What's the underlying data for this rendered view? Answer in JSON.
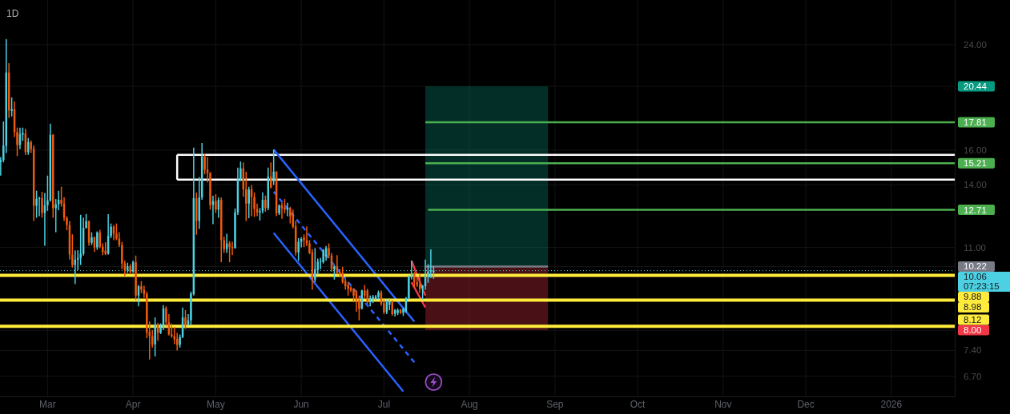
{
  "chart_data": {
    "type": "candlestick",
    "title": "1D",
    "x": [
      "2025-02-12",
      "2025-02-13",
      "2025-02-14",
      "2025-02-15",
      "2025-02-16",
      "2025-02-17",
      "2025-02-18",
      "2025-02-19",
      "2025-02-20",
      "2025-02-21",
      "2025-02-22",
      "2025-02-23",
      "2025-02-24",
      "2025-02-25",
      "2025-02-26",
      "2025-02-27",
      "2025-02-28",
      "2025-03-01",
      "2025-03-02",
      "2025-03-03",
      "2025-03-04",
      "2025-03-05",
      "2025-03-06",
      "2025-03-07",
      "2025-03-08",
      "2025-03-09",
      "2025-03-10",
      "2025-03-11",
      "2025-03-12",
      "2025-03-13",
      "2025-03-14",
      "2025-03-15",
      "2025-03-16",
      "2025-03-17",
      "2025-03-18",
      "2025-03-19",
      "2025-03-20",
      "2025-03-21",
      "2025-03-22",
      "2025-03-23",
      "2025-03-24",
      "2025-03-25",
      "2025-03-26",
      "2025-03-27",
      "2025-03-28",
      "2025-03-29",
      "2025-03-30",
      "2025-03-31",
      "2025-04-01",
      "2025-04-02",
      "2025-04-03",
      "2025-04-04",
      "2025-04-05",
      "2025-04-06",
      "2025-04-07",
      "2025-04-08",
      "2025-04-09",
      "2025-04-10",
      "2025-04-11",
      "2025-04-12",
      "2025-04-13",
      "2025-04-14",
      "2025-04-15",
      "2025-04-16",
      "2025-04-17",
      "2025-04-18",
      "2025-04-19",
      "2025-04-20",
      "2025-04-21",
      "2025-04-22",
      "2025-04-23",
      "2025-04-24",
      "2025-04-25",
      "2025-04-26",
      "2025-04-27",
      "2025-04-28",
      "2025-04-29",
      "2025-04-30",
      "2025-05-01",
      "2025-05-02",
      "2025-05-03",
      "2025-05-04",
      "2025-05-05",
      "2025-05-06",
      "2025-05-07",
      "2025-05-08",
      "2025-05-09",
      "2025-05-10",
      "2025-05-11",
      "2025-05-12",
      "2025-05-13",
      "2025-05-14",
      "2025-05-15",
      "2025-05-16",
      "2025-05-17",
      "2025-05-18",
      "2025-05-19",
      "2025-05-20",
      "2025-05-21",
      "2025-05-22",
      "2025-05-23",
      "2025-05-24",
      "2025-05-25",
      "2025-05-26",
      "2025-05-27",
      "2025-05-28",
      "2025-05-29",
      "2025-05-30",
      "2025-05-31",
      "2025-06-01",
      "2025-06-02",
      "2025-06-03",
      "2025-06-04",
      "2025-06-05",
      "2025-06-06",
      "2025-06-07",
      "2025-06-08",
      "2025-06-09",
      "2025-06-10",
      "2025-06-11",
      "2025-06-12",
      "2025-06-13",
      "2025-06-14",
      "2025-06-15",
      "2025-06-16",
      "2025-06-17",
      "2025-06-18",
      "2025-06-19",
      "2025-06-20",
      "2025-06-21",
      "2025-06-22",
      "2025-06-23",
      "2025-06-24",
      "2025-06-25",
      "2025-06-26",
      "2025-06-27",
      "2025-06-28",
      "2025-06-29",
      "2025-06-30",
      "2025-07-01",
      "2025-07-02",
      "2025-07-03",
      "2025-07-04",
      "2025-07-05",
      "2025-07-06",
      "2025-07-07",
      "2025-07-08",
      "2025-07-09",
      "2025-07-10",
      "2025-07-11",
      "2025-07-12",
      "2025-07-13",
      "2025-07-14",
      "2025-07-15",
      "2025-07-16",
      "2025-07-17",
      "2025-07-18",
      "2025-07-19"
    ],
    "ohlc": [
      [
        15.28,
        15.58,
        14.5,
        15.41
      ],
      [
        15.39,
        17.86,
        15.26,
        16.28
      ],
      [
        16.26,
        24.52,
        15.82,
        21.56
      ],
      [
        21.56,
        22.36,
        18.11,
        18.64
      ],
      [
        18.6,
        19.59,
        18.21,
        18.72
      ],
      [
        18.72,
        19.28,
        16.82,
        17.14
      ],
      [
        17.14,
        17.44,
        15.63,
        16.31
      ],
      [
        16.31,
        17.44,
        16.06,
        17.02
      ],
      [
        16.98,
        17.44,
        16.57,
        17.08
      ],
      [
        17.06,
        17.37,
        15.69,
        15.87
      ],
      [
        15.87,
        16.76,
        15.71,
        16.5
      ],
      [
        16.5,
        16.6,
        15.82,
        16.06
      ],
      [
        16.1,
        16.28,
        12.18,
        12.91
      ],
      [
        12.91,
        13.68,
        12.33,
        13.26
      ],
      [
        13.26,
        13.36,
        12.4,
        13.3
      ],
      [
        13.3,
        13.63,
        12.33,
        12.56
      ],
      [
        12.56,
        13.56,
        11.07,
        12.94
      ],
      [
        12.94,
        14.5,
        12.66,
        13.18
      ],
      [
        13.18,
        17.71,
        13.12,
        16.96
      ],
      [
        16.96,
        17.02,
        12.33,
        12.79
      ],
      [
        12.79,
        13.25,
        11.66,
        12.98
      ],
      [
        12.98,
        13.68,
        12.69,
        13.21
      ],
      [
        13.21,
        13.89,
        12.87,
        13.02
      ],
      [
        13.02,
        13.34,
        12.18,
        12.33
      ],
      [
        12.33,
        12.4,
        11.75,
        11.99
      ],
      [
        11.99,
        12.18,
        10.5,
        10.7
      ],
      [
        10.7,
        11.57,
        10.18,
        10.28
      ],
      [
        10.28,
        10.88,
        9.55,
        10.5
      ],
      [
        10.5,
        10.88,
        10.08,
        10.56
      ],
      [
        10.56,
        12.47,
        10.28,
        10.73
      ],
      [
        10.73,
        12.34,
        10.66,
        11.86
      ],
      [
        11.86,
        12.51,
        11.83,
        12.17
      ],
      [
        12.17,
        12.2,
        11.07,
        11.2
      ],
      [
        11.2,
        11.66,
        11.1,
        11.44
      ],
      [
        11.44,
        11.47,
        10.81,
        11.0
      ],
      [
        11.0,
        11.7,
        10.9,
        11.65
      ],
      [
        11.65,
        11.77,
        10.97,
        11.03
      ],
      [
        11.03,
        11.17,
        10.68,
        10.81
      ],
      [
        10.86,
        11.22,
        10.68,
        10.73
      ],
      [
        10.73,
        12.5,
        10.7,
        11.5
      ],
      [
        11.5,
        12.06,
        11.4,
        11.91
      ],
      [
        11.91,
        11.99,
        11.31,
        11.59
      ],
      [
        11.59,
        12.06,
        11.31,
        11.38
      ],
      [
        11.38,
        11.66,
        11.02,
        11.1
      ],
      [
        11.1,
        11.24,
        10.12,
        10.34
      ],
      [
        10.34,
        10.46,
        9.85,
        10.08
      ],
      [
        10.08,
        10.37,
        9.97,
        10.23
      ],
      [
        10.23,
        10.31,
        9.92,
        10.02
      ],
      [
        10.02,
        10.46,
        9.97,
        10.39
      ],
      [
        10.39,
        10.66,
        8.98,
        9.14
      ],
      [
        9.14,
        9.52,
        8.77,
        9.47
      ],
      [
        9.47,
        9.66,
        9.23,
        9.35
      ],
      [
        9.35,
        9.49,
        9.06,
        9.2
      ],
      [
        9.2,
        9.28,
        7.76,
        7.92
      ],
      [
        7.95,
        8.27,
        7.15,
        7.82
      ],
      [
        7.82,
        8.0,
        7.48,
        7.56
      ],
      [
        7.58,
        8.4,
        7.23,
        8.18
      ],
      [
        8.18,
        8.23,
        7.68,
        7.92
      ],
      [
        7.92,
        8.21,
        7.88,
        8.08
      ],
      [
        8.08,
        8.81,
        8.0,
        8.7
      ],
      [
        8.7,
        8.77,
        8.12,
        8.25
      ],
      [
        8.25,
        8.51,
        7.84,
        7.87
      ],
      [
        7.87,
        8.21,
        7.77,
        7.82
      ],
      [
        7.82,
        8.1,
        7.58,
        7.72
      ],
      [
        7.74,
        7.92,
        7.4,
        7.56
      ],
      [
        7.56,
        7.87,
        7.48,
        7.79
      ],
      [
        7.79,
        8.73,
        7.76,
        8.4
      ],
      [
        8.4,
        8.64,
        8.04,
        8.16
      ],
      [
        8.16,
        8.51,
        8.14,
        8.31
      ],
      [
        8.31,
        9.28,
        8.16,
        9.21
      ],
      [
        9.19,
        16.15,
        9.14,
        13.29
      ],
      [
        13.29,
        13.59,
        11.55,
        12.18
      ],
      [
        12.18,
        14.42,
        11.81,
        13.33
      ],
      [
        13.33,
        16.43,
        13.21,
        15.61
      ],
      [
        15.61,
        15.77,
        14.58,
        14.83
      ],
      [
        14.83,
        15.58,
        14.13,
        14.65
      ],
      [
        14.65,
        14.7,
        12.72,
        12.95
      ],
      [
        12.95,
        13.43,
        12.03,
        13.15
      ],
      [
        13.15,
        13.5,
        12.56,
        12.72
      ],
      [
        12.72,
        13.33,
        12.33,
        13.21
      ],
      [
        13.21,
        13.33,
        10.39,
        11.31
      ],
      [
        11.31,
        11.47,
        10.77,
        10.93
      ],
      [
        10.93,
        11.59,
        10.77,
        11.17
      ],
      [
        11.17,
        11.27,
        10.39,
        11.02
      ],
      [
        11.02,
        11.24,
        10.68,
        10.97
      ],
      [
        10.97,
        12.78,
        10.95,
        12.59
      ],
      [
        12.59,
        14.95,
        12.46,
        14.28
      ],
      [
        14.28,
        15.31,
        14.2,
        14.91
      ],
      [
        14.91,
        15.25,
        13.36,
        13.75
      ],
      [
        13.75,
        14.72,
        12.18,
        13.02
      ],
      [
        13.02,
        13.89,
        12.31,
        13.75
      ],
      [
        13.75,
        13.99,
        12.4,
        13.36
      ],
      [
        13.36,
        13.59,
        12.37,
        12.75
      ],
      [
        12.75,
        13.02,
        12.4,
        12.59
      ],
      [
        12.59,
        12.8,
        12.2,
        12.65
      ],
      [
        12.65,
        13.59,
        12.54,
        13.21
      ],
      [
        13.21,
        13.43,
        12.62,
        12.8
      ],
      [
        12.8,
        14.95,
        12.69,
        14.45
      ],
      [
        14.45,
        15.25,
        13.8,
        13.85
      ],
      [
        14.2,
        16.03,
        13.99,
        14.72
      ],
      [
        14.72,
        14.75,
        12.4,
        12.54
      ],
      [
        12.54,
        12.98,
        12.46,
        12.93
      ],
      [
        12.93,
        13.06,
        12.28,
        12.79
      ],
      [
        12.82,
        13.25,
        12.54,
        12.72
      ],
      [
        12.72,
        13.06,
        12.4,
        12.8
      ],
      [
        12.8,
        12.86,
        12.06,
        12.4
      ],
      [
        12.54,
        12.72,
        11.84,
        11.91
      ],
      [
        11.93,
        12.18,
        10.66,
        10.79
      ],
      [
        10.79,
        11.4,
        10.44,
        11.24
      ],
      [
        11.24,
        11.43,
        11.0,
        11.36
      ],
      [
        11.43,
        11.57,
        11.02,
        11.31
      ],
      [
        11.31,
        11.93,
        11.05,
        11.17
      ],
      [
        11.17,
        11.31,
        10.72,
        10.77
      ],
      [
        10.79,
        10.93,
        9.35,
        9.72
      ],
      [
        9.72,
        10.97,
        9.62,
        10.12
      ],
      [
        10.08,
        10.54,
        9.92,
        10.41
      ],
      [
        10.41,
        10.56,
        10.12,
        10.44
      ],
      [
        10.39,
        10.93,
        10.34,
        10.88
      ],
      [
        10.62,
        11.06,
        10.45,
        10.97
      ],
      [
        10.97,
        11.17,
        10.55,
        10.66
      ],
      [
        10.66,
        10.77,
        10.02,
        10.12
      ],
      [
        10.1,
        10.28,
        9.72,
        10.23
      ],
      [
        10.23,
        10.68,
        9.92,
        9.97
      ],
      [
        10.02,
        10.12,
        9.84,
        9.92
      ],
      [
        9.97,
        10.21,
        9.57,
        9.62
      ],
      [
        9.67,
        9.75,
        9.35,
        9.47
      ],
      [
        9.52,
        9.62,
        9.14,
        9.38
      ],
      [
        9.43,
        9.47,
        9.26,
        9.32
      ],
      [
        9.38,
        9.4,
        8.91,
        9.14
      ],
      [
        9.23,
        9.32,
        8.59,
        8.97
      ],
      [
        8.98,
        9.14,
        8.31,
        8.68
      ],
      [
        8.7,
        9.35,
        8.66,
        9.32
      ],
      [
        9.32,
        9.52,
        9.04,
        9.14
      ],
      [
        9.32,
        9.38,
        8.86,
        8.91
      ],
      [
        8.91,
        9.14,
        8.77,
        9.04
      ],
      [
        9.0,
        9.16,
        8.88,
        9.09
      ],
      [
        9.0,
        9.16,
        8.98,
        9.11
      ],
      [
        9.09,
        9.32,
        9.0,
        9.25
      ],
      [
        9.25,
        9.32,
        8.79,
        8.86
      ],
      [
        8.88,
        9.0,
        8.51,
        8.57
      ],
      [
        8.57,
        9.0,
        8.51,
        8.91
      ],
      [
        8.82,
        9.04,
        8.64,
        8.94
      ],
      [
        8.94,
        8.97,
        8.46,
        8.51
      ],
      [
        8.52,
        8.68,
        8.43,
        8.64
      ],
      [
        8.55,
        8.7,
        8.48,
        8.64
      ],
      [
        8.66,
        8.68,
        8.51,
        8.55
      ],
      [
        8.55,
        8.73,
        8.45,
        8.68
      ],
      [
        8.59,
        9.09,
        8.55,
        9.04
      ],
      [
        9.04,
        9.88,
        9.0,
        9.8
      ],
      [
        9.8,
        10.46,
        9.72,
        9.94
      ],
      [
        9.92,
        10.0,
        9.43,
        9.62
      ],
      [
        9.62,
        9.82,
        9.45,
        9.52
      ],
      [
        9.54,
        9.97,
        9.23,
        9.38
      ],
      [
        9.4,
        9.52,
        9.0,
        9.49
      ],
      [
        9.47,
        10.5,
        9.35,
        9.88
      ],
      [
        9.84,
        10.31,
        9.6,
        10.02
      ],
      [
        10.02,
        10.92,
        9.77,
        10.08
      ],
      [
        10.0,
        10.23,
        9.75,
        10.06
      ]
    ],
    "colors": [
      "#4dd0e1",
      "#4dd0e1",
      "#4dd0e1",
      "#ef5a0c",
      "#4dd0e1",
      "#ef5a0c",
      "#ef5a0c",
      "#4dd0e1",
      "#4dd0e1",
      "#ef5a0c",
      "#4dd0e1",
      "#ef5a0c",
      "#ef5a0c",
      "#4dd0e1",
      "#4dd0e1",
      "#ef5a0c",
      "#4dd0e1",
      "#4dd0e1",
      "#4dd0e1",
      "#ef5a0c",
      "#4dd0e1",
      "#4dd0e1",
      "#ef5a0c",
      "#ef5a0c",
      "#ef5a0c",
      "#ef5a0c",
      "#ef5a0c",
      "#4dd0e1",
      "#4dd0e1",
      "#4dd0e1",
      "#4dd0e1",
      "#4dd0e1",
      "#ef5a0c",
      "#4dd0e1",
      "#ef5a0c",
      "#4dd0e1",
      "#ef5a0c",
      "#ef5a0c",
      "#ef5a0c",
      "#4dd0e1",
      "#4dd0e1",
      "#ef5a0c",
      "#ef5a0c",
      "#ef5a0c",
      "#ef5a0c",
      "#ef5a0c",
      "#4dd0e1",
      "#ef5a0c",
      "#4dd0e1",
      "#ef5a0c",
      "#4dd0e1",
      "#ef5a0c",
      "#ef5a0c",
      "#ef5a0c",
      "#ef5a0c",
      "#ef5a0c",
      "#4dd0e1",
      "#ef5a0c",
      "#4dd0e1",
      "#4dd0e1",
      "#ef5a0c",
      "#ef5a0c",
      "#ef5a0c",
      "#ef5a0c",
      "#ef5a0c",
      "#4dd0e1",
      "#4dd0e1",
      "#ef5a0c",
      "#4dd0e1",
      "#4dd0e1",
      "#4dd0e1",
      "#ef5a0c",
      "#4dd0e1",
      "#4dd0e1",
      "#ef5a0c",
      "#ef5a0c",
      "#ef5a0c",
      "#4dd0e1",
      "#ef5a0c",
      "#4dd0e1",
      "#ef5a0c",
      "#ef5a0c",
      "#4dd0e1",
      "#ef5a0c",
      "#ef5a0c",
      "#4dd0e1",
      "#4dd0e1",
      "#4dd0e1",
      "#ef5a0c",
      "#ef5a0c",
      "#4dd0e1",
      "#ef5a0c",
      "#ef5a0c",
      "#ef5a0c",
      "#4dd0e1",
      "#4dd0e1",
      "#ef5a0c",
      "#4dd0e1",
      "#ef5a0c",
      "#4dd0e1",
      "#ef5a0c",
      "#4dd0e1",
      "#ef5a0c",
      "#ef5a0c",
      "#4dd0e1",
      "#ef5a0c",
      "#ef5a0c",
      "#ef5a0c",
      "#4dd0e1",
      "#4dd0e1",
      "#ef5a0c",
      "#ef5a0c",
      "#ef5a0c",
      "#ef5a0c",
      "#4dd0e1",
      "#4dd0e1",
      "#4dd0e1",
      "#4dd0e1",
      "#4dd0e1",
      "#ef5a0c",
      "#ef5a0c",
      "#4dd0e1",
      "#ef5a0c",
      "#ef5a0c",
      "#ef5a0c",
      "#ef5a0c",
      "#ef5a0c",
      "#ef5a0c",
      "#ef5a0c",
      "#ef5a0c",
      "#ef5a0c",
      "#4dd0e1",
      "#ef5a0c",
      "#ef5a0c",
      "#4dd0e1",
      "#4dd0e1",
      "#4dd0e1",
      "#4dd0e1",
      "#ef5a0c",
      "#ef5a0c",
      "#4dd0e1",
      "#4dd0e1",
      "#ef5a0c",
      "#4dd0e1",
      "#4dd0e1",
      "#ef5a0c",
      "#4dd0e1",
      "#4dd0e1",
      "#4dd0e1",
      "#4dd0e1",
      "#ef5a0c",
      "#ef5a0c",
      "#ef5a0c",
      "#4dd0e1",
      "#4dd0e1",
      "#4dd0e1",
      "#4dd0e1",
      "#4dd0e1"
    ],
    "xlim": [
      "2025-02-11T18:00",
      "2026-01-24"
    ],
    "xticks": [
      {
        "value": "2025-03-01",
        "label": "Mar"
      },
      {
        "value": "2025-04-01",
        "label": "Apr"
      },
      {
        "value": "2025-05-01",
        "label": "May"
      },
      {
        "value": "2025-06-01",
        "label": "Jun"
      },
      {
        "value": "2025-07-01",
        "label": "Jul"
      },
      {
        "value": "2025-08-01",
        "label": "Aug"
      },
      {
        "value": "2025-09-01",
        "label": "Sep"
      },
      {
        "value": "2025-10-01",
        "label": "Oct"
      },
      {
        "value": "2025-11-01",
        "label": "Nov"
      },
      {
        "value": "2025-12-01",
        "label": "Dec"
      },
      {
        "value": "2026-01-01",
        "label": "2026"
      }
    ],
    "ylim": [
      6.2,
      28.5
    ],
    "yticks": [
      {
        "value": 24,
        "label": "24.00"
      },
      {
        "value": 20.44,
        "label": "20.44"
      },
      {
        "value": 16,
        "label": "16.00"
      },
      {
        "value": 14,
        "label": "14.00"
      },
      {
        "value": 11,
        "label": "11.00"
      },
      {
        "value": 10.22,
        "label": "10.22"
      },
      {
        "value": 8.0,
        "label": "8.00"
      },
      {
        "value": 7.4,
        "label": "7.40"
      },
      {
        "value": 6.7,
        "label": "6.70"
      }
    ],
    "log": true,
    "grid": true,
    "ref_lines": [
      {
        "axis": "y",
        "value": 10.06,
        "label": "10.06",
        "color": "#4dd0e1",
        "line_style": "dotted"
      },
      {
        "axis": "y",
        "value": 9.88,
        "label": "9.88",
        "color": "#ffeb3b"
      },
      {
        "axis": "y",
        "value": 8.98,
        "label": "8.98",
        "color": "#ffeb3b"
      },
      {
        "axis": "y",
        "value": 8.12,
        "label": "8.12",
        "color": "#ffeb3b"
      }
    ],
    "bands": [
      {
        "axis": "y",
        "from": 10.22,
        "to": 20.44,
        "color": "#089981"
      },
      {
        "axis": "y",
        "from": 10.22,
        "to": 8.0,
        "color": "#f23645"
      }
    ],
    "series": [
      {
        "type": "line",
        "x": [
          "2025-07-16",
          "2025-08-29T12:00"
        ],
        "values": [
          10.22,
          10.22
        ],
        "color": "#787b86"
      },
      {
        "type": "line",
        "x": [
          "2025-07-16",
          "2026-01-24"
        ],
        "values": [
          17.81,
          17.81
        ],
        "color": "#4caf50",
        "value_labels": [
          null,
          "17.81"
        ]
      },
      {
        "type": "line",
        "x": [
          "2025-07-16",
          "2026-01-24"
        ],
        "values": [
          15.21,
          15.21
        ],
        "color": "#4caf50",
        "value_labels": [
          null,
          "15.21"
        ]
      },
      {
        "type": "line",
        "x": [
          "2025-07-17",
          "2026-01-24"
        ],
        "values": [
          12.71,
          12.71
        ],
        "color": "#4caf50",
        "value_labels": [
          null,
          "12.71"
        ]
      },
      {
        "type": "line",
        "x": [
          "2025-04-17",
          "2026-01-24"
        ],
        "values": [
          15.71,
          15.71
        ],
        "color": "#ffffff"
      },
      {
        "type": "line",
        "x": [
          "2025-04-17",
          "2026-01-24"
        ],
        "values": [
          14.28,
          14.28
        ],
        "color": "#ffffff"
      },
      {
        "type": "line",
        "x": [
          "2025-04-17",
          "2025-04-17"
        ],
        "values": [
          15.71,
          14.28
        ],
        "color": "#ffffff"
      },
      {
        "type": "line",
        "x": [
          "2025-05-22",
          "2025-07-12"
        ],
        "values": [
          16.03,
          8.27
        ],
        "color": "#2962ff"
      },
      {
        "type": "line",
        "x": [
          "2025-05-22",
          "2025-07-12"
        ],
        "values": [
          13.63,
          7.07
        ],
        "color": "#2962ff",
        "line_style": "dashed"
      },
      {
        "type": "line",
        "x": [
          "2025-05-22",
          "2025-07-08"
        ],
        "values": [
          11.63,
          6.32
        ],
        "color": "#2962ff"
      },
      {
        "type": "line",
        "x": [
          "2025-07-11",
          "2025-07-16"
        ],
        "values": [
          10.44,
          9.14
        ],
        "color": "#f23645"
      },
      {
        "type": "line",
        "x": [
          "2025-07-11",
          "2025-07-16"
        ],
        "values": [
          9.62,
          8.73
        ],
        "color": "#f23645"
      }
    ],
    "annotations": [
      "07:23:15"
    ]
  }
}
